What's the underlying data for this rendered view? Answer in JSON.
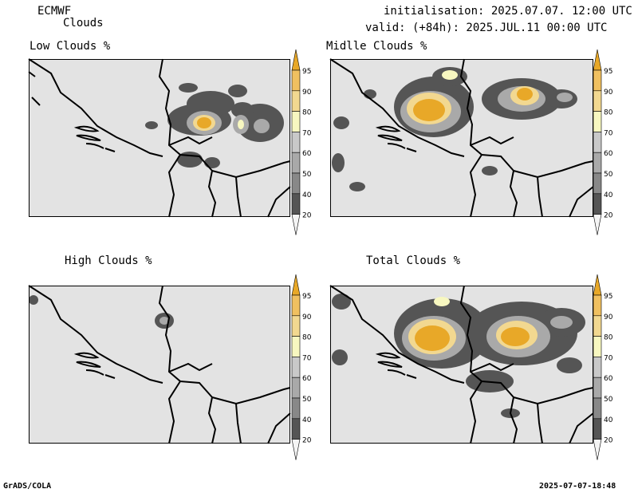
{
  "header": {
    "model": "ECMWF",
    "product": "Clouds",
    "initialisation": "initialisation: 2025.07.07. 12:00 UTC",
    "valid": "valid: (+84h): 2025.JUL.11 00:00 UTC"
  },
  "panels": [
    {
      "id": "low",
      "title": "Low Clouds %"
    },
    {
      "id": "middle",
      "title": "Midlle Clouds %"
    },
    {
      "id": "high",
      "title": "High Clouds %"
    },
    {
      "id": "total",
      "title": "Total Clouds %"
    }
  ],
  "colorbar": {
    "levels": [
      "20",
      "40",
      "50",
      "60",
      "70",
      "80",
      "90",
      "95"
    ],
    "colors": [
      "#f4f4f4",
      "#555555",
      "#888888",
      "#a9a9a9",
      "#c9c9c9",
      "#f7f7c0",
      "#f2d890",
      "#f0c060",
      "#e8a828"
    ]
  },
  "footer": {
    "left": "GrADS/COLA",
    "right": "2025-07-07-18:48"
  }
}
